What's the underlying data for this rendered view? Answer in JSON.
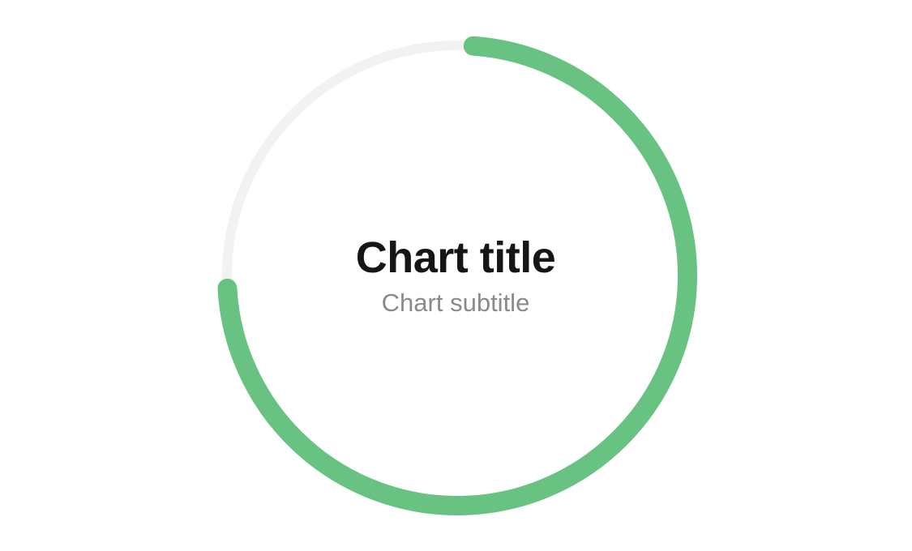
{
  "chart_data": {
    "type": "pie",
    "subtype": "radial-progress",
    "title": "Chart title",
    "subtitle": "Chart subtitle",
    "value": 73,
    "max": 100,
    "progress_color": "#68c281",
    "track_color": "#f2f2f2",
    "title_color": "#161616",
    "subtitle_color": "#8a8a8a"
  }
}
